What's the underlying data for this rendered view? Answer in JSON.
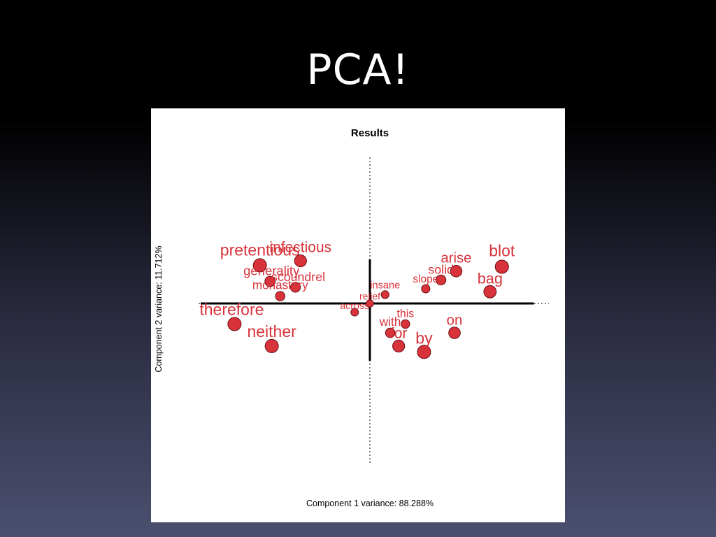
{
  "slide": {
    "title": "PCA!"
  },
  "colors": {
    "point": "#d8323a",
    "background_top": "#000000",
    "background_bottom": "#4b5070"
  },
  "chart_data": {
    "type": "scatter",
    "title": "Results",
    "xlabel": "Component 1 variance: 88.288%",
    "ylabel": "Component 2 variance: 11.712%",
    "xlim": [
      -1,
      1
    ],
    "ylim": [
      -1,
      1
    ],
    "grid": false,
    "points": [
      {
        "label": "therefore",
        "x": -0.8,
        "y": -0.14,
        "weight": 1.0
      },
      {
        "label": "neither",
        "x": -0.58,
        "y": -0.29,
        "weight": 1.0
      },
      {
        "label": "pretentious",
        "x": -0.65,
        "y": 0.26,
        "weight": 1.0
      },
      {
        "label": "infectious",
        "x": -0.41,
        "y": 0.29,
        "weight": 0.85
      },
      {
        "label": "generality",
        "x": -0.59,
        "y": 0.15,
        "weight": 0.65
      },
      {
        "label": "scoundrel",
        "x": -0.44,
        "y": 0.11,
        "weight": 0.6
      },
      {
        "label": "monastery",
        "x": -0.53,
        "y": 0.05,
        "weight": 0.55
      },
      {
        "label": "insane",
        "x": 0.09,
        "y": 0.06,
        "weight": 0.35
      },
      {
        "label": "relief",
        "x": 0.0,
        "y": 0.0,
        "weight": 0.3
      },
      {
        "label": "across",
        "x": -0.09,
        "y": -0.06,
        "weight": 0.32
      },
      {
        "label": "slope",
        "x": 0.33,
        "y": 0.1,
        "weight": 0.42
      },
      {
        "label": "solid",
        "x": 0.42,
        "y": 0.16,
        "weight": 0.6
      },
      {
        "label": "arise",
        "x": 0.51,
        "y": 0.22,
        "weight": 0.8
      },
      {
        "label": "blot",
        "x": 0.78,
        "y": 0.25,
        "weight": 1.0
      },
      {
        "label": "bag",
        "x": 0.71,
        "y": 0.08,
        "weight": 0.9
      },
      {
        "label": "this",
        "x": 0.21,
        "y": -0.14,
        "weight": 0.45
      },
      {
        "label": "with",
        "x": 0.12,
        "y": -0.2,
        "weight": 0.55
      },
      {
        "label": "for",
        "x": 0.17,
        "y": -0.29,
        "weight": 0.85
      },
      {
        "label": "by",
        "x": 0.32,
        "y": -0.33,
        "weight": 1.0
      },
      {
        "label": "on",
        "x": 0.5,
        "y": -0.2,
        "weight": 0.8
      }
    ],
    "loading_axes": {
      "horizontal": [
        -1.0,
        0.97
      ],
      "vertical": [
        -0.39,
        0.3
      ]
    }
  }
}
